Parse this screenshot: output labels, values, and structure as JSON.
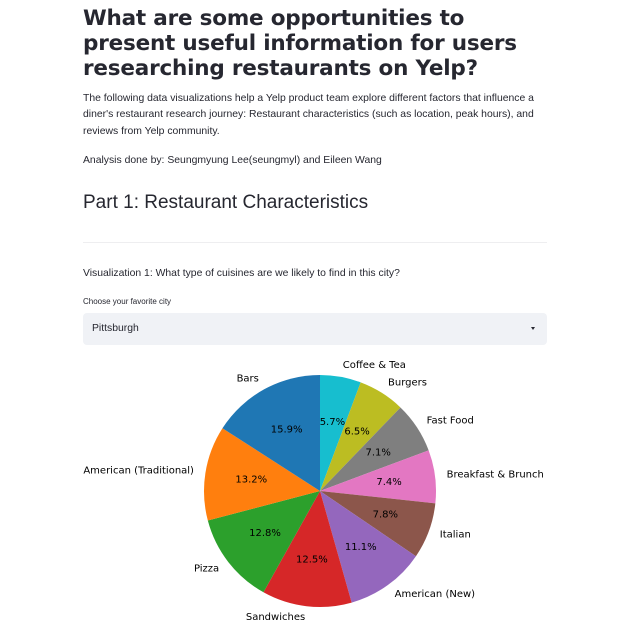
{
  "header": {
    "title": "What are some opportunities to present useful information for users researching restaurants on Yelp?"
  },
  "intro": {
    "text": "The following data visualizations help a Yelp product team explore different factors that influence a diner's restaurant research journey: Restaurant characteristics (such as location, peak hours), and reviews from Yelp community.",
    "byline": "Analysis done by: Seungmyung Lee(seungmyl) and Eileen Wang"
  },
  "section": {
    "title": "Part 1: Restaurant Characteristics"
  },
  "visualization": {
    "label": "Visualization 1: What type of cuisines are we likely to find in this city?",
    "select_label": "Choose your favorite city",
    "select_value": "Pittsburgh",
    "caret_icon": "chevron-down-icon"
  },
  "chart_data": {
    "type": "pie",
    "title": "",
    "start_angle_deg": 90,
    "direction": "clockwise",
    "slices": [
      {
        "label": "Coffee & Tea",
        "value": 5.7,
        "pct_label": "5.7%",
        "color": "#17becf"
      },
      {
        "label": "Burgers",
        "value": 6.5,
        "pct_label": "6.5%",
        "color": "#bcbd22"
      },
      {
        "label": "Fast Food",
        "value": 7.1,
        "pct_label": "7.1%",
        "color": "#7f7f7f"
      },
      {
        "label": "Breakfast & Brunch",
        "value": 7.4,
        "pct_label": "7.4%",
        "color": "#e377c2"
      },
      {
        "label": "Italian",
        "value": 7.8,
        "pct_label": "7.8%",
        "color": "#8c564b"
      },
      {
        "label": "American (New)",
        "value": 11.1,
        "pct_label": "11.1%",
        "color": "#9467bd"
      },
      {
        "label": "Sandwiches",
        "value": 12.5,
        "pct_label": "12.5%",
        "color": "#d62728"
      },
      {
        "label": "Pizza",
        "value": 12.8,
        "pct_label": "12.8%",
        "color": "#2ca02c"
      },
      {
        "label": "American (Traditional)",
        "value": 13.2,
        "pct_label": "13.2%",
        "color": "#ff7f0e"
      },
      {
        "label": "Bars",
        "value": 15.9,
        "pct_label": "15.9%",
        "color": "#1f77b4"
      }
    ]
  }
}
